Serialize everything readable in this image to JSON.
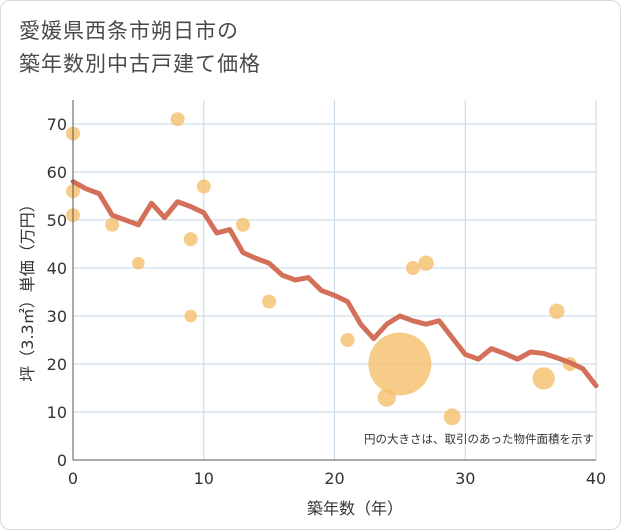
{
  "colors": {
    "line": "#d4705a",
    "bubble": "#f5bf6b",
    "grid": "#c7d7e6",
    "axis": "#555555"
  },
  "chart_data": {
    "type": "scatter",
    "title_lines": [
      "愛媛県西条市朔日市の",
      "築年数別中古戸建て価格"
    ],
    "xlabel": "築年数（年）",
    "ylabel": "坪（3.3㎡）単価（万円）",
    "note": "円の大きさは、取引のあった物件面積を示す",
    "xlim": [
      0,
      40
    ],
    "ylim": [
      0,
      75
    ],
    "xticks": [
      0,
      10,
      20,
      30,
      40
    ],
    "yticks": [
      0,
      10,
      20,
      30,
      40,
      50,
      60,
      70
    ],
    "grid": true,
    "points": [
      {
        "x": 0,
        "y": 68,
        "size": 1
      },
      {
        "x": 0,
        "y": 56,
        "size": 1
      },
      {
        "x": 0,
        "y": 51,
        "size": 1
      },
      {
        "x": 3,
        "y": 49,
        "size": 1
      },
      {
        "x": 5,
        "y": 41,
        "size": 0.9
      },
      {
        "x": 8,
        "y": 71,
        "size": 1
      },
      {
        "x": 9,
        "y": 46,
        "size": 1
      },
      {
        "x": 9,
        "y": 30,
        "size": 0.9
      },
      {
        "x": 10,
        "y": 57,
        "size": 1
      },
      {
        "x": 13,
        "y": 49,
        "size": 1
      },
      {
        "x": 15,
        "y": 33,
        "size": 1
      },
      {
        "x": 21,
        "y": 25,
        "size": 1
      },
      {
        "x": 24,
        "y": 13,
        "size": 1.3
      },
      {
        "x": 25,
        "y": 20,
        "size": 4.5
      },
      {
        "x": 26,
        "y": 40,
        "size": 1
      },
      {
        "x": 27,
        "y": 41,
        "size": 1.1
      },
      {
        "x": 29,
        "y": 9,
        "size": 1.2
      },
      {
        "x": 36,
        "y": 17,
        "size": 1.6
      },
      {
        "x": 37,
        "y": 31,
        "size": 1.1
      },
      {
        "x": 38,
        "y": 20,
        "size": 1
      }
    ],
    "trend": {
      "x": [
        0,
        1,
        2,
        3,
        4,
        5,
        6,
        7,
        8,
        9,
        10,
        11,
        12,
        13,
        14,
        15,
        16,
        17,
        18,
        19,
        20,
        21,
        22,
        23,
        24,
        25,
        26,
        27,
        28,
        29,
        30,
        31,
        32,
        33,
        34,
        35,
        36,
        37,
        38,
        39,
        40
      ],
      "y": [
        58,
        56.5,
        55.5,
        51,
        50,
        49,
        53.5,
        50.5,
        53.8,
        52.8,
        51.5,
        47.3,
        48,
        43.2,
        42,
        41,
        38.5,
        37.5,
        38,
        35.3,
        34.3,
        33,
        28.3,
        25.3,
        28.3,
        30,
        29,
        28.3,
        29,
        25.5,
        22,
        21,
        23.2,
        22.2,
        21,
        22.5,
        22.2,
        21.3,
        20.3,
        19,
        15.5
      ]
    }
  }
}
